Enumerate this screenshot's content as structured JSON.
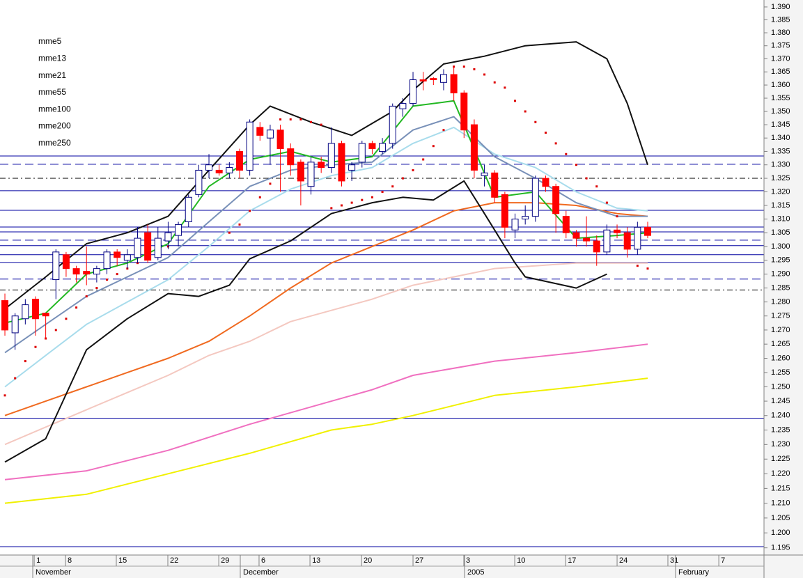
{
  "chart_data": {
    "type": "candlestick",
    "log_scale": true,
    "xlim": [
      -0.48,
      74.4
    ],
    "ylim": [
      1.1926,
      1.3927
    ],
    "yticks": [
      {
        "value": 1.39,
        "label": "1.390"
      },
      1.385,
      {
        "value": 1.38,
        "label": "1.380"
      },
      1.375,
      {
        "value": 1.37,
        "label": "1.370"
      },
      1.365,
      {
        "value": 1.36,
        "label": "1.360"
      },
      1.355,
      {
        "value": 1.35,
        "label": "1.350"
      },
      1.345,
      {
        "value": 1.34,
        "label": "1.340"
      },
      1.335,
      {
        "value": 1.33,
        "label": "1.330"
      },
      1.325,
      {
        "value": 1.32,
        "label": "1.320"
      },
      1.315,
      {
        "value": 1.31,
        "label": "1.310"
      },
      1.305,
      {
        "value": 1.3,
        "label": "1.300"
      },
      1.295,
      {
        "value": 1.29,
        "label": "1.290"
      },
      1.285,
      {
        "value": 1.28,
        "label": "1.280"
      },
      1.275,
      {
        "value": 1.27,
        "label": "1.270"
      },
      1.265,
      {
        "value": 1.26,
        "label": "1.260"
      },
      1.255,
      {
        "value": 1.25,
        "label": "1.250"
      },
      1.245,
      {
        "value": 1.24,
        "label": "1.240"
      },
      1.235,
      {
        "value": 1.23,
        "label": "1.230"
      },
      1.225,
      {
        "value": 1.22,
        "label": "1.220"
      },
      1.215,
      {
        "value": 1.21,
        "label": "1.210"
      },
      1.205,
      {
        "value": 1.2,
        "label": "1.200"
      },
      1.195
    ],
    "xticks": [
      {
        "value": 2.87,
        "label": "1"
      },
      {
        "value": 5.94,
        "label": "8"
      },
      {
        "value": 10.92,
        "label": "15"
      },
      {
        "value": 15.97,
        "label": "22"
      },
      {
        "value": 20.96,
        "label": "29"
      },
      {
        "value": 24.91,
        "label": "6"
      },
      {
        "value": 29.9,
        "label": "13"
      },
      {
        "value": 34.95,
        "label": "20"
      },
      {
        "value": 40.0,
        "label": "27"
      },
      {
        "value": 44.98,
        "label": "3"
      },
      {
        "value": 49.97,
        "label": "10"
      },
      {
        "value": 54.96,
        "label": "17"
      },
      {
        "value": 60.0,
        "label": "24"
      },
      {
        "value": 64.98,
        "label": "31"
      },
      {
        "value": 69.97,
        "label": "7"
      }
    ],
    "month_ticks": [
      {
        "value": 2.73,
        "label": "November"
      },
      {
        "value": 23.07,
        "label": "December"
      },
      {
        "value": 45.05,
        "label": "2005"
      },
      {
        "value": 65.73,
        "label": "February"
      }
    ],
    "legend": "upper left",
    "up_color": "#000080",
    "down_color": "#ff0000",
    "candles": {
      "x": [
        0,
        1,
        2,
        3,
        4,
        5,
        6,
        7,
        8,
        9,
        10,
        11,
        12,
        13,
        14,
        15,
        16,
        17,
        18,
        19,
        20,
        21,
        22,
        23,
        24,
        25,
        26,
        27,
        28,
        29,
        30,
        31,
        32,
        33,
        34,
        35,
        36,
        37,
        38,
        39,
        40,
        41,
        42,
        43,
        44,
        45,
        46,
        47,
        48,
        49,
        50,
        51,
        52,
        53,
        54,
        55,
        56,
        57,
        58,
        59,
        60,
        61,
        62,
        63
      ],
      "open": [
        1.2805,
        1.269,
        1.274,
        1.281,
        1.276,
        1.288,
        1.297,
        1.292,
        1.291,
        1.29,
        1.292,
        1.298,
        1.295,
        1.296,
        1.305,
        1.296,
        1.302,
        1.304,
        1.309,
        1.319,
        1.328,
        1.328,
        1.327,
        1.335,
        1.328,
        1.344,
        1.34,
        1.343,
        1.336,
        1.331,
        1.322,
        1.331,
        1.329,
        1.338,
        1.328,
        1.331,
        1.338,
        1.335,
        1.338,
        1.351,
        1.353,
        1.362,
        1.3625,
        1.361,
        1.364,
        1.357,
        1.345,
        1.326,
        1.327,
        1.319,
        1.306,
        1.31,
        1.311,
        1.325,
        1.322,
        1.311,
        1.305,
        1.303,
        1.302,
        1.298,
        1.306,
        1.305,
        1.299,
        1.307
      ],
      "high": [
        1.283,
        1.276,
        1.281,
        1.282,
        1.276,
        1.299,
        1.298,
        1.293,
        1.3,
        1.293,
        1.299,
        1.299,
        1.299,
        1.307,
        1.308,
        1.307,
        1.309,
        1.309,
        1.319,
        1.33,
        1.334,
        1.33,
        1.331,
        1.336,
        1.347,
        1.346,
        1.345,
        1.345,
        1.338,
        1.332,
        1.333,
        1.333,
        1.344,
        1.339,
        1.331,
        1.339,
        1.339,
        1.34,
        1.353,
        1.355,
        1.365,
        1.365,
        1.363,
        1.366,
        1.367,
        1.358,
        1.347,
        1.33,
        1.328,
        1.32,
        1.312,
        1.315,
        1.326,
        1.326,
        1.323,
        1.313,
        1.306,
        1.311,
        1.304,
        1.308,
        1.308,
        1.307,
        1.309,
        1.309
      ],
      "low": [
        1.268,
        1.263,
        1.272,
        1.268,
        1.267,
        1.281,
        1.289,
        1.287,
        1.286,
        1.287,
        1.29,
        1.293,
        1.292,
        1.294,
        1.294,
        1.295,
        1.299,
        1.3,
        1.307,
        1.318,
        1.325,
        1.326,
        1.325,
        1.325,
        1.326,
        1.339,
        1.33,
        1.32,
        1.326,
        1.315,
        1.319,
        1.327,
        1.327,
        1.322,
        1.324,
        1.329,
        1.334,
        1.334,
        1.336,
        1.348,
        1.352,
        1.358,
        1.36,
        1.358,
        1.354,
        1.34,
        1.325,
        1.322,
        1.316,
        1.303,
        1.303,
        1.308,
        1.309,
        1.32,
        1.305,
        1.303,
        1.3,
        1.3,
        1.293,
        1.297,
        1.303,
        1.296,
        1.297,
        1.303
      ],
      "close": [
        1.27,
        1.275,
        1.279,
        1.274,
        1.275,
        1.298,
        1.292,
        1.29,
        1.29,
        1.292,
        1.298,
        1.296,
        1.297,
        1.303,
        1.295,
        1.303,
        1.305,
        1.308,
        1.318,
        1.328,
        1.33,
        1.327,
        1.329,
        1.328,
        1.346,
        1.341,
        1.343,
        1.336,
        1.33,
        1.324,
        1.331,
        1.329,
        1.338,
        1.324,
        1.33,
        1.338,
        1.336,
        1.338,
        1.352,
        1.353,
        1.362,
        1.3615,
        1.362,
        1.364,
        1.357,
        1.343,
        1.328,
        1.327,
        1.318,
        1.307,
        1.31,
        1.311,
        1.325,
        1.322,
        1.312,
        1.305,
        1.303,
        1.302,
        1.298,
        1.306,
        1.305,
        1.299,
        1.307,
        1.304
      ]
    },
    "series": [
      {
        "name": "mme5",
        "color": "#22b822",
        "x": [
          0,
          4,
          8,
          12,
          16,
          20,
          24,
          28,
          32,
          36,
          40,
          44,
          48,
          52,
          56,
          60,
          63
        ],
        "values": [
          1.2725,
          1.276,
          1.29,
          1.294,
          1.301,
          1.322,
          1.332,
          1.335,
          1.331,
          1.333,
          1.352,
          1.354,
          1.318,
          1.32,
          1.303,
          1.304,
          1.305
        ]
      },
      {
        "name": "mme13",
        "color": "#7890b8",
        "x": [
          0,
          4,
          8,
          12,
          16,
          20,
          24,
          28,
          32,
          36,
          40,
          44,
          48,
          52,
          56,
          60,
          63
        ],
        "values": [
          1.262,
          1.272,
          1.282,
          1.289,
          1.296,
          1.309,
          1.322,
          1.328,
          1.33,
          1.331,
          1.343,
          1.348,
          1.333,
          1.325,
          1.316,
          1.311,
          1.311
        ]
      },
      {
        "name": "mme21",
        "color": "#a8dcec",
        "x": [
          0,
          4,
          8,
          12,
          16,
          20,
          24,
          28,
          32,
          36,
          40,
          44,
          48,
          52,
          56,
          60,
          63
        ],
        "values": [
          1.25,
          1.261,
          1.272,
          1.28,
          1.288,
          1.3,
          1.313,
          1.321,
          1.326,
          1.329,
          1.338,
          1.344,
          1.334,
          1.329,
          1.32,
          1.314,
          1.313
        ]
      },
      {
        "name": "mme55",
        "color": "#f06a20",
        "x": [
          0,
          4,
          8,
          12,
          16,
          20,
          24,
          28,
          32,
          36,
          40,
          44,
          48,
          52,
          56,
          60,
          63
        ],
        "values": [
          1.24,
          1.245,
          1.25,
          1.255,
          1.26,
          1.266,
          1.275,
          1.285,
          1.294,
          1.3,
          1.306,
          1.313,
          1.316,
          1.316,
          1.315,
          1.312,
          1.311
        ]
      },
      {
        "name": "mme100",
        "color": "#f4c8c0",
        "x": [
          0,
          4,
          8,
          12,
          16,
          20,
          24,
          28,
          32,
          36,
          40,
          44,
          48,
          52,
          56,
          60,
          63
        ],
        "values": [
          1.23,
          1.236,
          1.242,
          1.248,
          1.254,
          1.261,
          1.266,
          1.273,
          1.277,
          1.281,
          1.286,
          1.289,
          1.292,
          1.293,
          1.294,
          1.294,
          1.294
        ]
      },
      {
        "name": "mme200",
        "color": "#f070c0",
        "x": [
          0,
          8,
          16,
          24,
          32,
          36,
          40,
          48,
          56,
          63
        ],
        "values": [
          1.218,
          1.221,
          1.228,
          1.237,
          1.245,
          1.249,
          1.254,
          1.259,
          1.262,
          1.265
        ]
      },
      {
        "name": "mme250",
        "color": "#f0f000",
        "x": [
          0,
          8,
          16,
          24,
          32,
          36,
          40,
          48,
          56,
          63
        ],
        "values": [
          1.21,
          1.213,
          1.22,
          1.227,
          1.235,
          1.237,
          1.24,
          1.247,
          1.25,
          1.253
        ]
      }
    ],
    "bands": [
      {
        "color": "#111111",
        "x": [
          0,
          4,
          8,
          12,
          16,
          20,
          24,
          26,
          30,
          34,
          38,
          40,
          43,
          47,
          51,
          56,
          59,
          61,
          63
        ],
        "values": [
          1.2775,
          1.289,
          1.301,
          1.305,
          1.311,
          1.328,
          1.345,
          1.352,
          1.346,
          1.341,
          1.35,
          1.358,
          1.368,
          1.371,
          1.375,
          1.3765,
          1.37,
          1.353,
          1.33
        ]
      },
      {
        "color": "#111111",
        "x": [
          0,
          4,
          8,
          12,
          16,
          19,
          22,
          24,
          28,
          32,
          36,
          39,
          42,
          45,
          47,
          50,
          51,
          56,
          59
        ],
        "values": [
          1.224,
          1.232,
          1.263,
          1.274,
          1.283,
          1.282,
          1.286,
          1.2955,
          1.302,
          1.312,
          1.316,
          1.318,
          1.317,
          1.324,
          1.312,
          1.294,
          1.289,
          1.285,
          1.29
        ]
      }
    ],
    "sar": {
      "color": "#dd0000",
      "x": [
        0,
        1,
        2,
        3,
        4,
        5,
        6,
        7,
        8,
        9,
        10,
        11,
        12,
        13,
        14,
        15,
        16,
        17,
        22,
        23,
        24,
        25,
        26,
        27,
        28,
        29,
        30,
        31,
        32,
        33,
        34,
        35,
        36,
        37,
        38,
        39,
        40,
        41,
        42,
        43,
        44,
        45,
        46,
        47,
        48,
        49,
        50,
        51,
        52,
        53,
        54,
        55,
        56,
        57,
        58,
        59,
        60,
        62,
        63
      ],
      "values": [
        1.247,
        1.253,
        1.259,
        1.264,
        1.267,
        1.27,
        1.274,
        1.278,
        1.282,
        1.285,
        1.288,
        1.29,
        1.292,
        1.294,
        1.296,
        1.298,
        1.3,
        1.305,
        1.305,
        1.308,
        1.313,
        1.318,
        1.323,
        1.347,
        1.347,
        1.347,
        1.346,
        1.345,
        1.314,
        1.315,
        1.316,
        1.317,
        1.318,
        1.32,
        1.322,
        1.325,
        1.328,
        1.332,
        1.337,
        1.343,
        1.367,
        1.367,
        1.366,
        1.364,
        1.361,
        1.359,
        1.354,
        1.35,
        1.346,
        1.342,
        1.338,
        1.334,
        1.33,
        1.325,
        1.322,
        1.316,
        1.311,
        1.293,
        1.292
      ]
    },
    "levels": [
      {
        "value": 1.3333,
        "style": "solid",
        "color": "#0000a0"
      },
      {
        "value": 1.3302,
        "style": "dashed",
        "color": "#0000a0"
      },
      {
        "value": 1.325,
        "style": "dashdot",
        "color": "#000000"
      },
      {
        "value": 1.3204,
        "style": "solid",
        "color": "#0000a0"
      },
      {
        "value": 1.3132,
        "style": "solid",
        "color": "#0000a0"
      },
      {
        "value": 1.3071,
        "style": "solid",
        "color": "#0000a0"
      },
      {
        "value": 1.3053,
        "style": "solid",
        "color": "#0000a0"
      },
      {
        "value": 1.3023,
        "style": "dashed",
        "color": "#0000a0"
      },
      {
        "value": 1.3003,
        "style": "solid",
        "color": "#0000a0"
      },
      {
        "value": 1.297,
        "style": "solid",
        "color": "#0000a0"
      },
      {
        "value": 1.2942,
        "style": "solid",
        "color": "#0000a0"
      },
      {
        "value": 1.2882,
        "style": "dashed",
        "color": "#0000a0"
      },
      {
        "value": 1.2843,
        "style": "dashdot",
        "color": "#000000"
      },
      {
        "value": 1.2391,
        "style": "solid",
        "color": "#0000a0"
      },
      {
        "value": 1.1954,
        "style": "solid",
        "color": "#0000a0"
      }
    ]
  }
}
